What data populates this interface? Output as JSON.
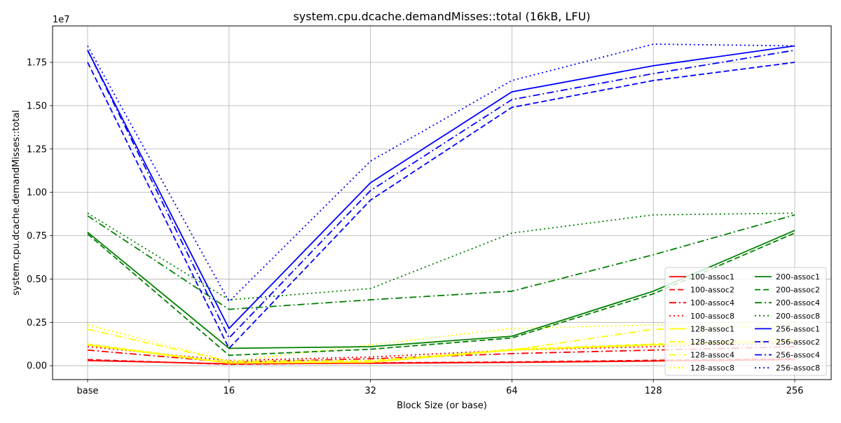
{
  "chart_data": {
    "type": "line",
    "title": "system.cpu.dcache.demandMisses::total (16kB, LFU)",
    "xlabel": "Block Size (or base)",
    "ylabel": "system.cpu.dcache.demandMisses::total",
    "y_multiplier_label": "1e7",
    "categories": [
      "base",
      "16",
      "32",
      "64",
      "128",
      "256"
    ],
    "y_ticks": [
      "0.00",
      "0.25",
      "0.50",
      "0.75",
      "1.00",
      "1.25",
      "1.50",
      "1.75"
    ],
    "ylim": [
      -0.08,
      1.96
    ],
    "grid": true,
    "legend_position": "lower right",
    "series": [
      {
        "name": "100-assoc1",
        "color": "#ff0000",
        "dash": "solid",
        "values": [
          0.03,
          0.011,
          0.014,
          0.019,
          0.027,
          0.035
        ]
      },
      {
        "name": "100-assoc2",
        "color": "#ff0000",
        "dash": "dashed",
        "values": [
          0.035,
          0.008,
          0.016,
          0.022,
          0.031,
          0.04
        ]
      },
      {
        "name": "100-assoc4",
        "color": "#ff0000",
        "dash": "dashdot",
        "values": [
          0.09,
          0.02,
          0.04,
          0.07,
          0.09,
          0.11
        ]
      },
      {
        "name": "100-assoc8",
        "color": "#ff0000",
        "dash": "dotted",
        "values": [
          0.11,
          0.03,
          0.05,
          0.09,
          0.11,
          0.13
        ]
      },
      {
        "name": "128-assoc1",
        "color": "#ffff00",
        "dash": "solid",
        "values": [
          0.12,
          0.015,
          0.02,
          0.09,
          0.12,
          0.14
        ]
      },
      {
        "name": "128-assoc2",
        "color": "#ffff00",
        "dash": "dashed",
        "values": [
          0.125,
          0.018,
          0.022,
          0.095,
          0.125,
          0.15
        ]
      },
      {
        "name": "128-assoc4",
        "color": "#ffff00",
        "dash": "dashdot",
        "values": [
          0.21,
          0.025,
          0.03,
          0.09,
          0.21,
          0.23
        ]
      },
      {
        "name": "128-assoc8",
        "color": "#ffff00",
        "dash": "dotted",
        "values": [
          0.235,
          0.025,
          0.12,
          0.215,
          0.235,
          0.25
        ]
      },
      {
        "name": "200-assoc1",
        "color": "#008000",
        "dash": "solid",
        "values": [
          0.77,
          0.1,
          0.11,
          0.17,
          0.43,
          0.78
        ]
      },
      {
        "name": "200-assoc2",
        "color": "#008000",
        "dash": "dashed",
        "values": [
          0.76,
          0.06,
          0.095,
          0.16,
          0.415,
          0.765
        ]
      },
      {
        "name": "200-assoc4",
        "color": "#008000",
        "dash": "dashdot",
        "values": [
          0.865,
          0.325,
          0.38,
          0.43,
          0.64,
          0.87
        ]
      },
      {
        "name": "200-assoc8",
        "color": "#008000",
        "dash": "dotted",
        "values": [
          0.88,
          0.38,
          0.445,
          0.765,
          0.87,
          0.88
        ]
      },
      {
        "name": "256-assoc1",
        "color": "#0000ff",
        "dash": "solid",
        "values": [
          1.82,
          0.215,
          1.055,
          1.58,
          1.73,
          1.845
        ]
      },
      {
        "name": "256-assoc2",
        "color": "#0000ff",
        "dash": "dashed",
        "values": [
          1.75,
          0.1,
          0.955,
          1.49,
          1.645,
          1.75
        ]
      },
      {
        "name": "256-assoc4",
        "color": "#0000ff",
        "dash": "dashdot",
        "values": [
          1.82,
          0.16,
          1.01,
          1.535,
          1.685,
          1.82
        ]
      },
      {
        "name": "256-assoc8",
        "color": "#0000ff",
        "dash": "dotted",
        "values": [
          1.845,
          0.37,
          1.18,
          1.645,
          1.855,
          1.845
        ]
      }
    ]
  }
}
